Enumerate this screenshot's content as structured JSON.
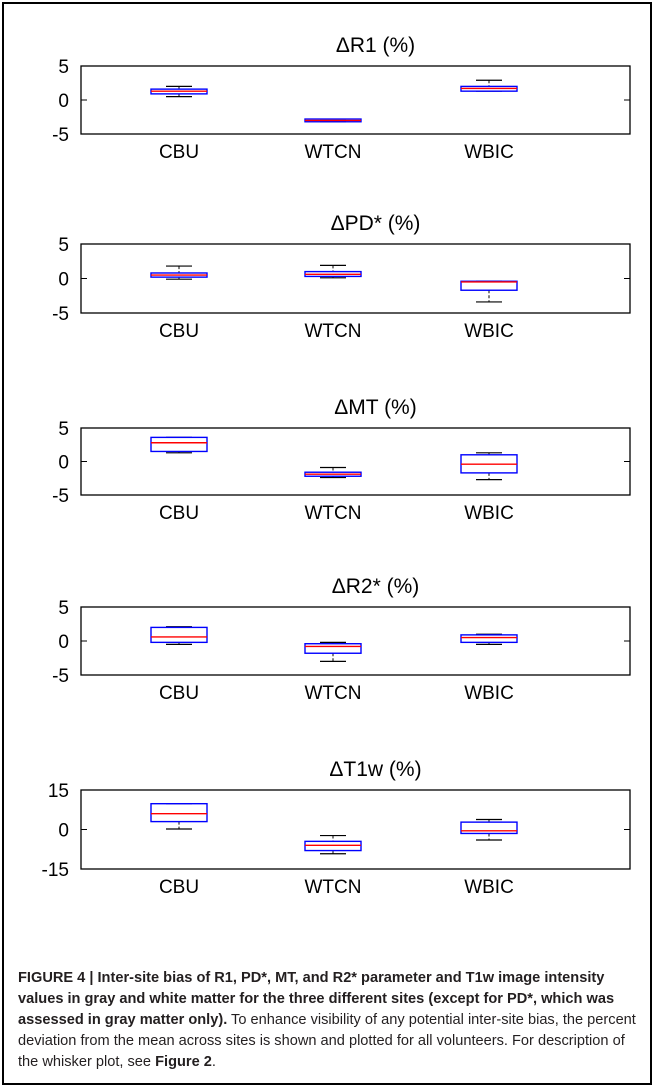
{
  "chart_data": [
    {
      "type": "box",
      "title": "ΔR1 (%)",
      "categories": [
        "CBU",
        "WTCN",
        "WBIC"
      ],
      "yticks": [
        "5",
        "0",
        "-5"
      ],
      "ylim": [
        -5,
        5
      ],
      "boxes": [
        {
          "min": 0.5,
          "q1": 0.9,
          "median": 1.3,
          "q3": 1.6,
          "max": 2.0
        },
        {
          "min": -3.2,
          "q1": -3.2,
          "median": -3.0,
          "q3": -2.8,
          "max": -2.8
        },
        {
          "min": 1.3,
          "q1": 1.3,
          "median": 1.7,
          "q3": 2.0,
          "max": 2.9
        }
      ]
    },
    {
      "type": "box",
      "title": "ΔPD* (%)",
      "categories": [
        "CBU",
        "WTCN",
        "WBIC"
      ],
      "yticks": [
        "5",
        "0",
        "-5"
      ],
      "ylim": [
        -5,
        5
      ],
      "boxes": [
        {
          "min": -0.1,
          "q1": 0.2,
          "median": 0.5,
          "q3": 0.8,
          "max": 1.8
        },
        {
          "min": 0.1,
          "q1": 0.3,
          "median": 0.6,
          "q3": 1.0,
          "max": 1.9
        },
        {
          "min": -3.4,
          "q1": -1.7,
          "median": -0.5,
          "q3": -0.4,
          "max": -0.4
        }
      ]
    },
    {
      "type": "box",
      "title": "ΔMT (%)",
      "categories": [
        "CBU",
        "WTCN",
        "WBIC"
      ],
      "yticks": [
        "5",
        "0",
        "-5"
      ],
      "ylim": [
        -5,
        5
      ],
      "boxes": [
        {
          "min": 1.3,
          "q1": 1.5,
          "median": 2.8,
          "q3": 3.6,
          "max": 3.6
        },
        {
          "min": -2.4,
          "q1": -2.2,
          "median": -1.9,
          "q3": -1.6,
          "max": -0.9
        },
        {
          "min": -2.7,
          "q1": -1.7,
          "median": -0.4,
          "q3": 1.0,
          "max": 1.3
        }
      ]
    },
    {
      "type": "box",
      "title": "ΔR2* (%)",
      "categories": [
        "CBU",
        "WTCN",
        "WBIC"
      ],
      "yticks": [
        "5",
        "0",
        "-5"
      ],
      "ylim": [
        -5,
        5
      ],
      "boxes": [
        {
          "min": -0.5,
          "q1": -0.2,
          "median": 0.6,
          "q3": 2.0,
          "max": 2.1
        },
        {
          "min": -3.0,
          "q1": -1.8,
          "median": -0.8,
          "q3": -0.4,
          "max": -0.2
        },
        {
          "min": -0.5,
          "q1": -0.2,
          "median": 0.5,
          "q3": 0.9,
          "max": 1.0
        }
      ]
    },
    {
      "type": "box",
      "title": "ΔT1w (%)",
      "categories": [
        "CBU",
        "WTCN",
        "WBIC"
      ],
      "yticks": [
        "15",
        "0",
        "-15"
      ],
      "ylim": [
        -15,
        15
      ],
      "boxes": [
        {
          "min": 0.2,
          "q1": 3.0,
          "median": 6.0,
          "q3": 9.8,
          "max": 9.8
        },
        {
          "min": -9.2,
          "q1": -8.0,
          "median": -6.0,
          "q3": -4.5,
          "max": -2.3
        },
        {
          "min": -4.0,
          "q1": -1.5,
          "median": -0.5,
          "q3": 2.8,
          "max": 3.8
        }
      ]
    }
  ],
  "caption": {
    "bold": "FIGURE 4 | Inter-site bias of R1, PD*, MT, and R2* parameter and T1w image intensity values in gray and white matter for the three different sites (except for PD*, which was assessed in gray matter only).",
    "text": " To enhance visibility of any potential inter-site bias, the percent deviation from the mean across sites is shown and plotted for all volunteers. For description of the whisker plot, see ",
    "ref": "Figure 2",
    "end": "."
  },
  "colors": {
    "box": "#0000ff",
    "median": "#ff0000",
    "axis": "#000000"
  }
}
